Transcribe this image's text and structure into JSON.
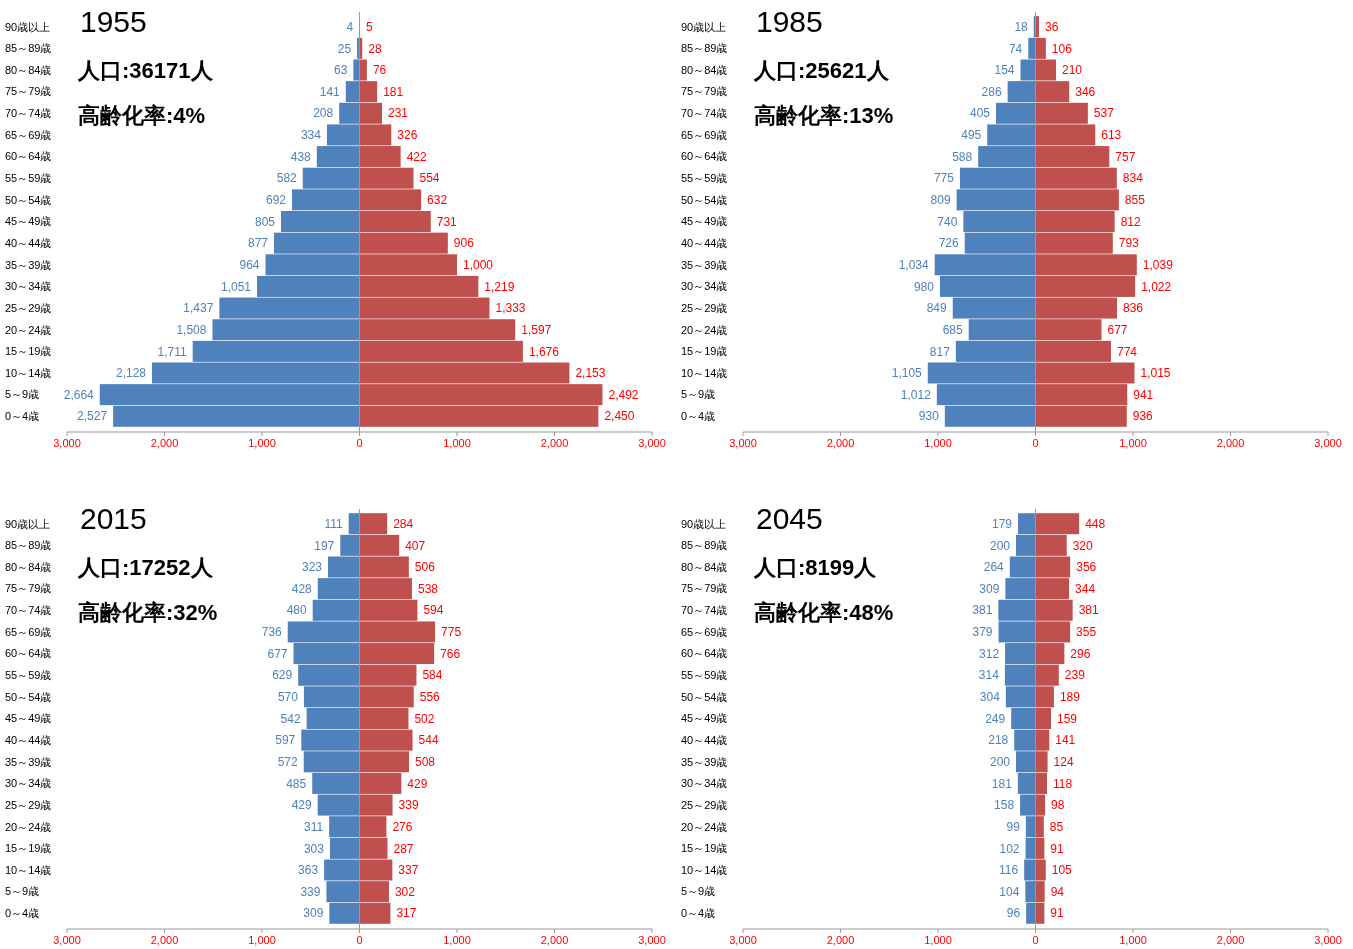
{
  "chart_data": [
    {
      "type": "bar",
      "orientation": "horizontal",
      "title": "1955",
      "annotations": [
        "人口:36171人",
        "高齢化率:4%"
      ],
      "categories": [
        "90歳以上",
        "85～89歳",
        "80～84歳",
        "75～79歳",
        "70～74歳",
        "65～69歳",
        "60～64歳",
        "55～59歳",
        "50～54歳",
        "45～49歳",
        "40～44歳",
        "35～39歳",
        "30～34歳",
        "25～29歳",
        "20～24歳",
        "15～19歳",
        "10～14歳",
        "5～9歳",
        "0～4歳"
      ],
      "xlim": [
        -3000,
        3000
      ],
      "xticks": [
        {
          "value": -3000,
          "label": "3,000"
        },
        {
          "value": -2000,
          "label": "2,000"
        },
        {
          "value": -1000,
          "label": "1,000"
        },
        {
          "value": 0,
          "label": "0"
        },
        {
          "value": 1000,
          "label": "1,000"
        },
        {
          "value": 2000,
          "label": "2,000"
        },
        {
          "value": 3000,
          "label": "3,000"
        }
      ],
      "series": [
        {
          "color": "#4f81bd",
          "base": [
            -4,
            -25,
            -63,
            -141,
            -208,
            -334,
            -438,
            -582,
            -692,
            -805,
            -877,
            -964,
            -1051,
            -1437,
            -1508,
            -1711,
            -2128,
            -2664,
            -2527
          ],
          "values": [
            4,
            25,
            63,
            141,
            208,
            334,
            438,
            582,
            692,
            805,
            877,
            964,
            1051,
            1437,
            1508,
            1711,
            2128,
            2664,
            2527
          ],
          "value_labels": [
            "4",
            "25",
            "63",
            "141",
            "208",
            "334",
            "438",
            "582",
            "692",
            "805",
            "877",
            "964",
            "1,051",
            "1,437",
            "1,508",
            "1,711",
            "2,128",
            "2,664",
            "2,527"
          ]
        },
        {
          "color": "#c0504d",
          "values": [
            5,
            28,
            76,
            181,
            231,
            326,
            422,
            554,
            632,
            731,
            906,
            1000,
            1219,
            1333,
            1597,
            1676,
            2153,
            2492,
            2450
          ],
          "value_labels": [
            "5",
            "28",
            "76",
            "181",
            "231",
            "326",
            "422",
            "554",
            "632",
            "731",
            "906",
            "1,000",
            "1,219",
            "1,333",
            "1,597",
            "1,676",
            "2,153",
            "2,492",
            "2,450"
          ]
        }
      ]
    },
    {
      "type": "bar",
      "orientation": "horizontal",
      "title": "1985",
      "annotations": [
        "人口:25621人",
        "高齢化率:13%"
      ],
      "categories": [
        "90歳以上",
        "85～89歳",
        "80～84歳",
        "75～79歳",
        "70～74歳",
        "65～69歳",
        "60～64歳",
        "55～59歳",
        "50～54歳",
        "45～49歳",
        "40～44歳",
        "35～39歳",
        "30～34歳",
        "25～29歳",
        "20～24歳",
        "15～19歳",
        "10～14歳",
        "5～9歳",
        "0～4歳"
      ],
      "xlim": [
        -3000,
        3000
      ],
      "xticks": [
        {
          "value": -3000,
          "label": "3,000"
        },
        {
          "value": -2000,
          "label": "2,000"
        },
        {
          "value": -1000,
          "label": "1,000"
        },
        {
          "value": 0,
          "label": "0"
        },
        {
          "value": 1000,
          "label": "1,000"
        },
        {
          "value": 2000,
          "label": "2,000"
        },
        {
          "value": 3000,
          "label": "3,000"
        }
      ],
      "series": [
        {
          "color": "#4f81bd",
          "base": [
            -18,
            -74,
            -154,
            -286,
            -405,
            -495,
            -588,
            -775,
            -809,
            -740,
            -726,
            -1034,
            -980,
            -849,
            -685,
            -817,
            -1105,
            -1012,
            -930
          ],
          "values": [
            18,
            74,
            154,
            286,
            405,
            495,
            588,
            775,
            809,
            740,
            726,
            1034,
            980,
            849,
            685,
            817,
            1105,
            1012,
            930
          ],
          "value_labels": [
            "18",
            "74",
            "154",
            "286",
            "405",
            "495",
            "588",
            "775",
            "809",
            "740",
            "726",
            "1,034",
            "980",
            "849",
            "685",
            "817",
            "1,105",
            "1,012",
            "930"
          ]
        },
        {
          "color": "#c0504d",
          "values": [
            36,
            106,
            210,
            346,
            537,
            613,
            757,
            834,
            855,
            812,
            793,
            1039,
            1022,
            836,
            677,
            774,
            1015,
            941,
            936
          ],
          "value_labels": [
            "36",
            "106",
            "210",
            "346",
            "537",
            "613",
            "757",
            "834",
            "855",
            "812",
            "793",
            "1,039",
            "1,022",
            "836",
            "677",
            "774",
            "1,015",
            "941",
            "936"
          ]
        }
      ]
    },
    {
      "type": "bar",
      "orientation": "horizontal",
      "title": "2015",
      "annotations": [
        "人口:17252人",
        "高齢化率:32%"
      ],
      "categories": [
        "90歳以上",
        "85～89歳",
        "80～84歳",
        "75～79歳",
        "70～74歳",
        "65～69歳",
        "60～64歳",
        "55～59歳",
        "50～54歳",
        "45～49歳",
        "40～44歳",
        "35～39歳",
        "30～34歳",
        "25～29歳",
        "20～24歳",
        "15～19歳",
        "10～14歳",
        "5～9歳",
        "0～4歳"
      ],
      "xlim": [
        -3000,
        3000
      ],
      "xticks": [
        {
          "value": -3000,
          "label": "3,000"
        },
        {
          "value": -2000,
          "label": "2,000"
        },
        {
          "value": -1000,
          "label": "1,000"
        },
        {
          "value": 0,
          "label": "0"
        },
        {
          "value": 1000,
          "label": "1,000"
        },
        {
          "value": 2000,
          "label": "2,000"
        },
        {
          "value": 3000,
          "label": "3,000"
        }
      ],
      "series": [
        {
          "color": "#4f81bd",
          "base": [
            -111,
            -197,
            -323,
            -428,
            -480,
            -736,
            -677,
            -629,
            -570,
            -542,
            -597,
            -572,
            -485,
            -429,
            -311,
            -303,
            -363,
            -339,
            -309
          ],
          "values": [
            111,
            197,
            323,
            428,
            480,
            736,
            677,
            629,
            570,
            542,
            597,
            572,
            485,
            429,
            311,
            303,
            363,
            339,
            309
          ],
          "value_labels": [
            "111",
            "197",
            "323",
            "428",
            "480",
            "736",
            "677",
            "629",
            "570",
            "542",
            "597",
            "572",
            "485",
            "429",
            "311",
            "303",
            "363",
            "339",
            "309"
          ]
        },
        {
          "color": "#c0504d",
          "values": [
            284,
            407,
            506,
            538,
            594,
            775,
            766,
            584,
            556,
            502,
            544,
            508,
            429,
            339,
            276,
            287,
            337,
            302,
            317
          ],
          "value_labels": [
            "284",
            "407",
            "506",
            "538",
            "594",
            "775",
            "766",
            "584",
            "556",
            "502",
            "544",
            "508",
            "429",
            "339",
            "276",
            "287",
            "337",
            "302",
            "317"
          ]
        }
      ]
    },
    {
      "type": "bar",
      "orientation": "horizontal",
      "title": "2045",
      "annotations": [
        "人口:8199人",
        "高齢化率:48%"
      ],
      "categories": [
        "90歳以上",
        "85～89歳",
        "80～84歳",
        "75～79歳",
        "70～74歳",
        "65～69歳",
        "60～64歳",
        "55～59歳",
        "50～54歳",
        "45～49歳",
        "40～44歳",
        "35～39歳",
        "30～34歳",
        "25～29歳",
        "20～24歳",
        "15～19歳",
        "10～14歳",
        "5～9歳",
        "0～4歳"
      ],
      "xlim": [
        -3000,
        3000
      ],
      "xticks": [
        {
          "value": -3000,
          "label": "3,000"
        },
        {
          "value": -2000,
          "label": "2,000"
        },
        {
          "value": -1000,
          "label": "1,000"
        },
        {
          "value": 0,
          "label": "0"
        },
        {
          "value": 1000,
          "label": "1,000"
        },
        {
          "value": 2000,
          "label": "2,000"
        },
        {
          "value": 3000,
          "label": "3,000"
        }
      ],
      "series": [
        {
          "color": "#4f81bd",
          "base": [
            -179,
            -200,
            -264,
            -309,
            -381,
            -379,
            -312,
            -314,
            -304,
            -249,
            -218,
            -200,
            -181,
            -158,
            -99,
            -102,
            -116,
            -104,
            -96
          ],
          "values": [
            179,
            200,
            264,
            309,
            381,
            379,
            312,
            314,
            304,
            249,
            218,
            200,
            181,
            158,
            99,
            102,
            116,
            104,
            96
          ],
          "value_labels": [
            "179",
            "200",
            "264",
            "309",
            "381",
            "379",
            "312",
            "314",
            "304",
            "249",
            "218",
            "200",
            "181",
            "158",
            "99",
            "102",
            "116",
            "104",
            "96"
          ]
        },
        {
          "color": "#c0504d",
          "values": [
            448,
            320,
            356,
            344,
            381,
            355,
            296,
            239,
            189,
            159,
            141,
            124,
            118,
            98,
            85,
            91,
            105,
            94,
            91
          ],
          "value_labels": [
            "448",
            "320",
            "356",
            "344",
            "381",
            "355",
            "296",
            "239",
            "189",
            "159",
            "141",
            "124",
            "118",
            "98",
            "85",
            "91",
            "105",
            "94",
            "91"
          ]
        }
      ]
    }
  ]
}
